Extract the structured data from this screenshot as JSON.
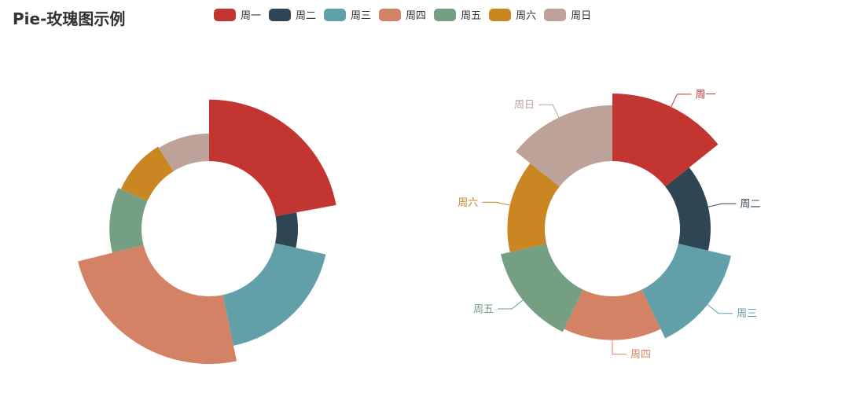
{
  "title": "Pie-玫瑰图示例",
  "legend": [
    "周一",
    "周二",
    "周三",
    "周四",
    "周五",
    "周六",
    "周日"
  ],
  "colors": [
    "#c23531",
    "#2f4554",
    "#61a0a8",
    "#d48265",
    "#749f83",
    "#ca8622",
    "#bda29a"
  ],
  "chart_data": [
    {
      "type": "pie",
      "rose_type": "radius",
      "categories": [
        "周一",
        "周二",
        "周三",
        "周四",
        "周五",
        "周六",
        "周日"
      ],
      "values": [
        152,
        44,
        126,
        168,
        73,
        65,
        61
      ],
      "labels_shown": false
    },
    {
      "type": "pie",
      "rose_type": "area",
      "categories": [
        "周一",
        "周二",
        "周三",
        "周四",
        "周五",
        "周六",
        "周日"
      ],
      "values": [
        123,
        41,
        93,
        70,
        77,
        56,
        97
      ],
      "labels_shown": true
    }
  ]
}
